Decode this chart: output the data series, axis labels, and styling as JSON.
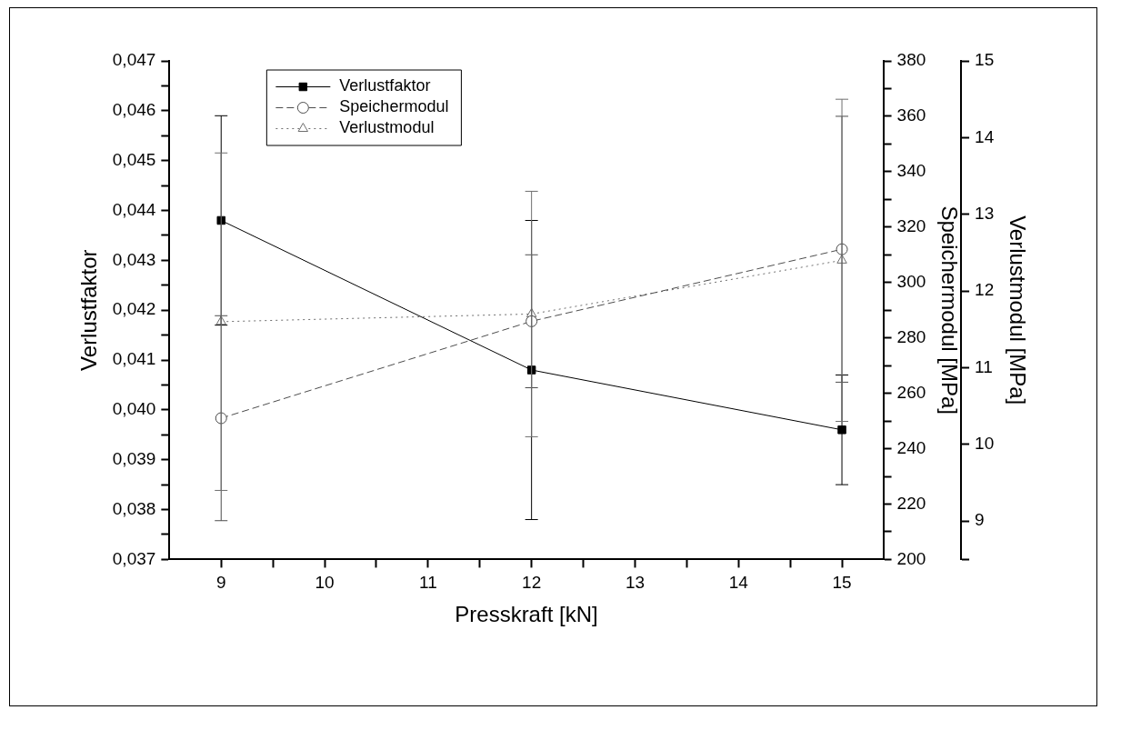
{
  "chart_data": {
    "type": "line",
    "xlabel": "Presskraft [kN]",
    "ylabel": "Verlustfaktor",
    "y2label": "Speichermodul [MPa]",
    "y3label": "Verlustmodul [MPa]",
    "x": [
      9,
      12,
      15
    ],
    "xlim": [
      8.5,
      15.4
    ],
    "xticks": [
      9,
      {
        "value": 9.5,
        "label": null
      },
      10,
      {
        "value": 10.5,
        "label": null
      },
      11,
      {
        "value": 11.5,
        "label": null
      },
      12,
      {
        "value": 12.5,
        "label": null
      },
      13,
      {
        "value": 13.5,
        "label": null
      },
      14,
      {
        "value": 14.5,
        "label": null
      },
      15
    ],
    "ylim": [
      0.037,
      0.047
    ],
    "yticks": [
      {
        "value": 0.037,
        "label": "0,037"
      },
      {
        "value": 0.0375,
        "label": null
      },
      {
        "value": 0.038,
        "label": "0,038"
      },
      {
        "value": 0.0385,
        "label": null
      },
      {
        "value": 0.039,
        "label": "0,039"
      },
      {
        "value": 0.0395,
        "label": null
      },
      {
        "value": 0.04,
        "label": "0,040"
      },
      {
        "value": 0.0405,
        "label": null
      },
      {
        "value": 0.041,
        "label": "0,041"
      },
      {
        "value": 0.0415,
        "label": null
      },
      {
        "value": 0.042,
        "label": "0,042"
      },
      {
        "value": 0.0425,
        "label": null
      },
      {
        "value": 0.043,
        "label": "0,043"
      },
      {
        "value": 0.0435,
        "label": null
      },
      {
        "value": 0.044,
        "label": "0,044"
      },
      {
        "value": 0.0445,
        "label": null
      },
      {
        "value": 0.045,
        "label": "0,045"
      },
      {
        "value": 0.0455,
        "label": null
      },
      {
        "value": 0.046,
        "label": "0,046"
      },
      {
        "value": 0.0465,
        "label": null
      },
      {
        "value": 0.047,
        "label": "0,047"
      }
    ],
    "y2lim": [
      200,
      380
    ],
    "y2ticks": [
      200,
      {
        "value": 210,
        "label": null
      },
      220,
      {
        "value": 230,
        "label": null
      },
      240,
      {
        "value": 250,
        "label": null
      },
      260,
      {
        "value": 270,
        "label": null
      },
      280,
      {
        "value": 290,
        "label": null
      },
      300,
      {
        "value": 310,
        "label": null
      },
      320,
      {
        "value": 330,
        "label": null
      },
      340,
      {
        "value": 350,
        "label": null
      },
      360,
      {
        "value": 370,
        "label": null
      },
      380
    ],
    "y3lim": [
      8.5,
      15
    ],
    "y3ticks": [
      {
        "value": 8.5,
        "label": null
      },
      9,
      10,
      11,
      12,
      13,
      14,
      15
    ],
    "grid": false,
    "legend": "top left",
    "series": [
      {
        "name": "Verlustfaktor",
        "color": "#000000",
        "values": [
          0.0438,
          0.0408,
          0.0396
        ],
        "errors": [
          0.0021,
          0.003,
          0.0011
        ],
        "marker": "square",
        "line_style": "solid"
      },
      {
        "name": "Speichermodul",
        "color": "#4d4d4d",
        "axis": "y2",
        "values": [
          251,
          286,
          312
        ],
        "errors": [
          37,
          24,
          48
        ],
        "marker": "circle",
        "line_style": "dashed"
      },
      {
        "name": "Verlustmodul",
        "color": "#6e6e6e",
        "axis": "y3",
        "values": [
          11.6,
          11.7,
          12.4
        ],
        "errors": [
          2.2,
          1.6,
          2.1
        ],
        "marker": "triangle",
        "line_style": "dotted"
      }
    ]
  }
}
